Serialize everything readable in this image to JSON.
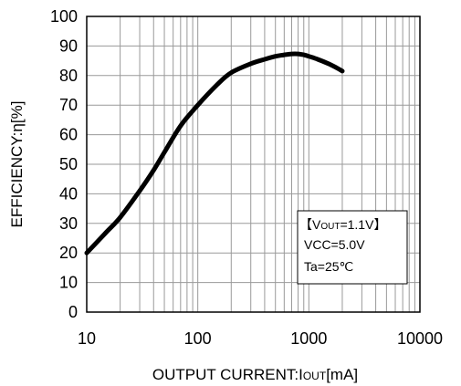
{
  "chart_data": {
    "type": "line",
    "xlabel": {
      "main": "OUTPUT CURRENT:I",
      "sub": "OUT",
      "unit": "[mA]"
    },
    "ylabel": "EFFICIENCY:η[%]",
    "x_scale": "log",
    "xlim": [
      10,
      10000
    ],
    "ylim": [
      0,
      100
    ],
    "x_ticks": [
      10,
      100,
      1000,
      10000
    ],
    "x_tick_labels": [
      "10",
      "100",
      "1000",
      "10000"
    ],
    "y_ticks": [
      0,
      10,
      20,
      30,
      40,
      50,
      60,
      70,
      80,
      90,
      100
    ],
    "y_tick_labels": [
      "0",
      "10",
      "20",
      "30",
      "40",
      "50",
      "60",
      "70",
      "80",
      "90",
      "100"
    ],
    "grid": true,
    "series": [
      {
        "color": "#000000",
        "x": [
          10,
          15,
          20,
          30,
          40,
          50,
          70,
          100,
          150,
          200,
          300,
          400,
          500,
          600,
          700,
          800,
          900,
          1000,
          1200,
          1500,
          1800,
          2000
        ],
        "y": [
          20,
          27,
          32,
          41,
          48,
          54,
          63,
          70,
          77,
          81,
          84,
          85.5,
          86.5,
          87,
          87.3,
          87.3,
          87,
          86.5,
          85.5,
          84,
          82.5,
          81.5
        ]
      }
    ],
    "annotation": {
      "lines": [
        {
          "bracket_open": "【",
          "main": "V",
          "sub": "OUT",
          "rest": "=1.1V",
          "bracket_close": "】"
        },
        {
          "text": "VCC=5.0V"
        },
        {
          "text": "Ta=25℃"
        }
      ]
    }
  }
}
